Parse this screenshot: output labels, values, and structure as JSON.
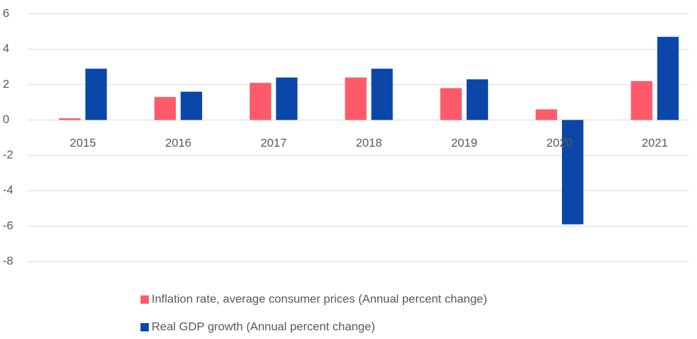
{
  "chart_data": {
    "type": "bar",
    "categories": [
      "2015",
      "2016",
      "2017",
      "2018",
      "2019",
      "2020",
      "2021"
    ],
    "series": [
      {
        "name": "Inflation rate, average consumer prices (Annual percent change)",
        "color": "#ff5a69",
        "values": [
          0.1,
          1.3,
          2.1,
          2.4,
          1.8,
          0.6,
          2.2
        ]
      },
      {
        "name": "Real GDP growth (Annual percent change)",
        "color": "#0a47a9",
        "values": [
          2.9,
          1.6,
          2.4,
          2.9,
          2.3,
          -5.9,
          4.7
        ]
      }
    ],
    "ylim": [
      -8,
      6
    ],
    "yticks": [
      -8,
      -6,
      -4,
      -2,
      0,
      2,
      4,
      6
    ],
    "grid": true
  }
}
